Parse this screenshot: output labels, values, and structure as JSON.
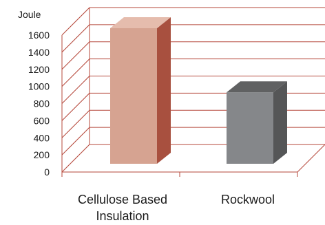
{
  "chart_data": {
    "type": "bar",
    "style": "3d-column",
    "y_unit_label": "Joule",
    "categories": [
      "Cellulose Based|Insulation",
      "Rockwool"
    ],
    "values": [
      1600,
      850
    ],
    "ylim": [
      0,
      1600
    ],
    "yticks": [
      0,
      200,
      400,
      600,
      800,
      1000,
      1200,
      1400,
      1600
    ],
    "grid": true,
    "legend": "none",
    "colors": {
      "grid": "#b5473a",
      "bar_front": [
        "#d6a391",
        "#85878a"
      ],
      "bar_side": [
        "#a8503f",
        "#555657"
      ],
      "bar_top": [
        "#e5bcad",
        "#606162"
      ]
    }
  }
}
